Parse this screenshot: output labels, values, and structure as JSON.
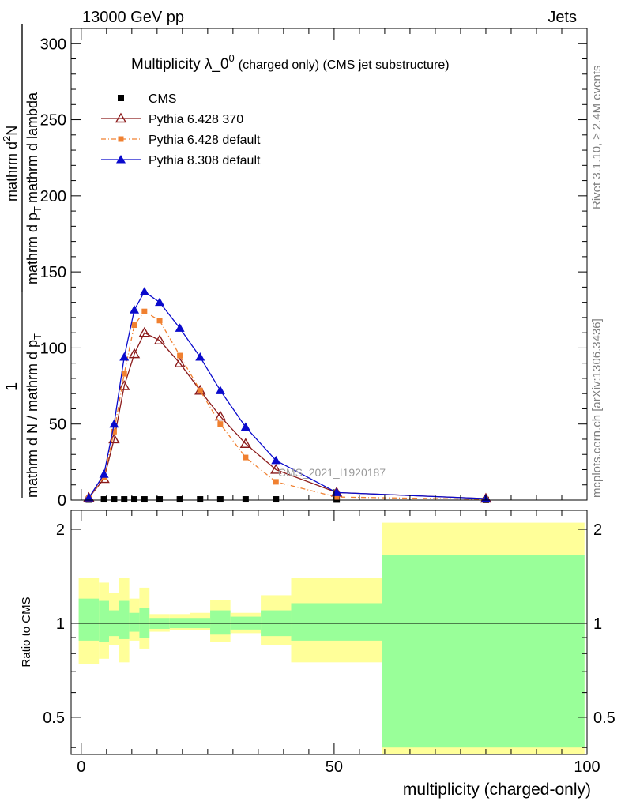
{
  "header": {
    "left": "13000 GeV pp",
    "right": "Jets"
  },
  "side_text": {
    "rivet": "Rivet 3.1.10, ≥ 2.4M events",
    "mcplots": "mcplots.cern.ch [arXiv:1306.3436]"
  },
  "watermark": "CMS_2021_I1920187",
  "colors": {
    "cms": "#000000",
    "p6_370": "#8b1a1a",
    "p6_default": "#f08030",
    "p8": "#0a0acc",
    "band_inner": "#99ff99",
    "band_outer": "#ffff99"
  },
  "chart_data": [
    {
      "type": "line",
      "title_main": "Multiplicity λ_0",
      "title_sup": "0",
      "title_tail": "(charged only) (CMS jet substructure)",
      "ylabel": "1 / (mathrm d N / mathrm d p_T) · mathrm d²N / (mathrm d p_T mathrm d lambda)",
      "ylabel_num": "1",
      "ylabel_den": "mathrm d N / mathrm d p",
      "ylabel_right_num": "mathrm d",
      "ylabel_right_num2": "N",
      "ylabel_right_den": "mathrm d p",
      "ylabel_right_den2": "mathrm d lambda",
      "ylabel_sub": "T",
      "ylabel_sup": "2",
      "xlim": [
        -2,
        100
      ],
      "ylim": [
        0,
        310
      ],
      "yticks": [
        0,
        50,
        100,
        150,
        200,
        250,
        300
      ],
      "legend": [
        "CMS",
        "Pythia 6.428 370",
        "Pythia 6.428 default",
        "Pythia 8.308 default"
      ],
      "series": [
        {
          "name": "CMS",
          "marker": "square",
          "x": [
            1.5,
            4.5,
            6.5,
            8.5,
            10.5,
            12.5,
            15.5,
            19.5,
            23.5,
            27.5,
            32.5,
            38.5,
            50.5,
            80
          ],
          "y": [
            0.3,
            0.5,
            0.5,
            0.5,
            0.5,
            0.5,
            0.5,
            0.5,
            0.5,
            0.5,
            0.5,
            0.5,
            0.3,
            0.1
          ]
        },
        {
          "name": "Pythia 6.428 370",
          "marker": "triangle-open",
          "x": [
            1.5,
            4.5,
            6.5,
            8.5,
            10.5,
            12.5,
            15.5,
            19.5,
            23.5,
            27.5,
            32.5,
            38.5,
            50.5,
            80
          ],
          "y": [
            1.5,
            14,
            40,
            75,
            96,
            110,
            105,
            90,
            72,
            55,
            37,
            20,
            5,
            1
          ]
        },
        {
          "name": "Pythia 6.428 default",
          "marker": "square-small",
          "x": [
            1.5,
            4.5,
            6.5,
            8.5,
            10.5,
            12.5,
            15.5,
            19.5,
            23.5,
            27.5,
            32.5,
            38.5,
            50.5,
            80
          ],
          "y": [
            1.5,
            15,
            45,
            83,
            115,
            124,
            118,
            95,
            72,
            50,
            28,
            12,
            2,
            0.5
          ]
        },
        {
          "name": "Pythia 8.308 default",
          "marker": "triangle",
          "x": [
            1.5,
            4.5,
            6.5,
            8.5,
            10.5,
            12.5,
            15.5,
            19.5,
            23.5,
            27.5,
            32.5,
            38.5,
            50.5,
            80
          ],
          "y": [
            1.5,
            17,
            50,
            94,
            125,
            137,
            130,
            113,
            94,
            72,
            48,
            26,
            5,
            1
          ]
        }
      ]
    },
    {
      "type": "area",
      "ylabel": "Ratio to CMS",
      "xlabel": "multiplicity (charged-only)",
      "xlim": [
        -2,
        100
      ],
      "ylim": [
        0.38,
        2.3
      ],
      "yticks": [
        0.5,
        1,
        2
      ],
      "ytick_labels": [
        "0.5",
        "1",
        "2"
      ],
      "xticks": [
        0,
        50,
        100
      ],
      "bins": [
        {
          "lo": -0.5,
          "hi": 3.5,
          "inner": [
            0.88,
            1.2
          ],
          "outer": [
            0.74,
            1.4
          ]
        },
        {
          "lo": 3.5,
          "hi": 5.5,
          "inner": [
            0.87,
            1.18
          ],
          "outer": [
            0.77,
            1.35
          ]
        },
        {
          "lo": 5.5,
          "hi": 7.5,
          "inner": [
            0.91,
            1.1
          ],
          "outer": [
            0.85,
            1.25
          ]
        },
        {
          "lo": 7.5,
          "hi": 9.5,
          "inner": [
            0.89,
            1.18
          ],
          "outer": [
            0.75,
            1.4
          ]
        },
        {
          "lo": 9.5,
          "hi": 11.5,
          "inner": [
            0.94,
            1.08
          ],
          "outer": [
            0.88,
            1.2
          ]
        },
        {
          "lo": 11.5,
          "hi": 13.5,
          "inner": [
            0.9,
            1.12
          ],
          "outer": [
            0.83,
            1.3
          ]
        },
        {
          "lo": 13.5,
          "hi": 17.5,
          "inner": [
            0.96,
            1.04
          ],
          "outer": [
            0.94,
            1.07
          ]
        },
        {
          "lo": 17.5,
          "hi": 21.5,
          "inner": [
            0.965,
            1.04
          ],
          "outer": [
            0.95,
            1.07
          ]
        },
        {
          "lo": 21.5,
          "hi": 25.5,
          "inner": [
            0.965,
            1.04
          ],
          "outer": [
            0.95,
            1.08
          ]
        },
        {
          "lo": 25.5,
          "hi": 29.5,
          "inner": [
            0.92,
            1.1
          ],
          "outer": [
            0.87,
            1.19
          ]
        },
        {
          "lo": 29.5,
          "hi": 35.5,
          "inner": [
            0.955,
            1.05
          ],
          "outer": [
            0.93,
            1.08
          ]
        },
        {
          "lo": 35.5,
          "hi": 41.5,
          "inner": [
            0.91,
            1.1
          ],
          "outer": [
            0.85,
            1.23
          ]
        },
        {
          "lo": 41.5,
          "hi": 59.5,
          "inner": [
            0.88,
            1.16
          ],
          "outer": [
            0.75,
            1.4
          ]
        },
        {
          "lo": 59.5,
          "hi": 99.5,
          "inner": [
            0.4,
            1.65
          ],
          "outer": [
            0.38,
            2.1
          ]
        }
      ]
    }
  ]
}
